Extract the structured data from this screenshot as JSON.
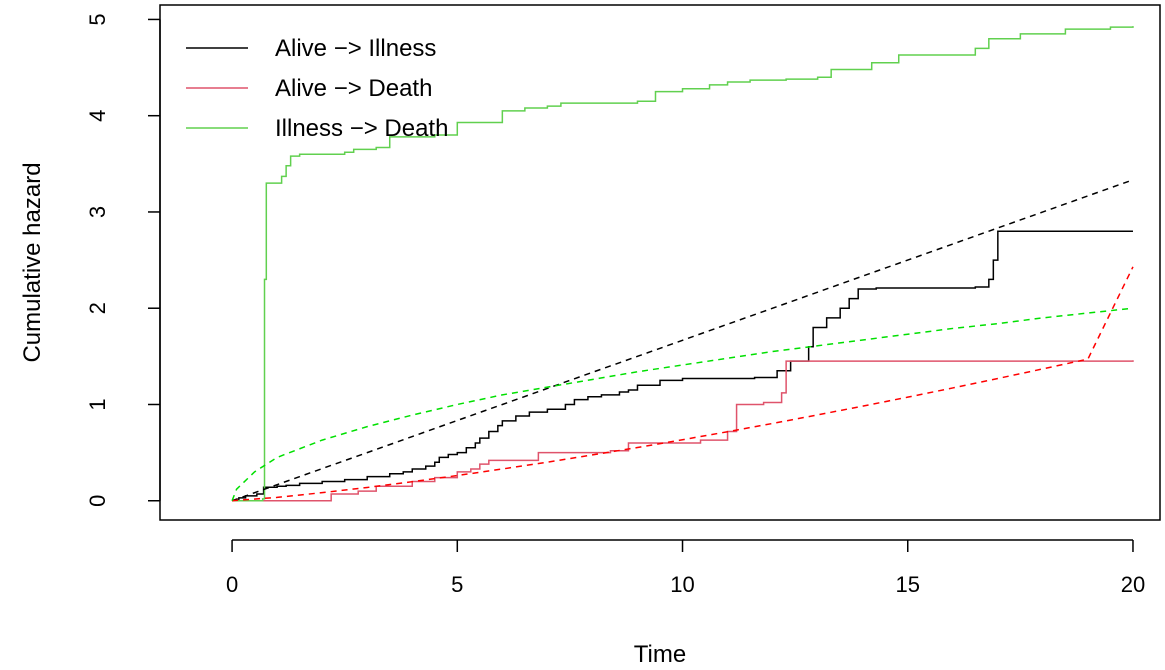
{
  "chart_data": {
    "type": "line",
    "xlabel": "Time",
    "ylabel": "Cumulative hazard",
    "xlim": [
      -1.6,
      20.6
    ],
    "ylim": [
      -0.2,
      5.15
    ],
    "x_ticks": [
      "0",
      "5",
      "10",
      "15",
      "20"
    ],
    "y_ticks": [
      "0",
      "1",
      "2",
      "3",
      "4",
      "5"
    ],
    "grid": false,
    "legend_position": "top-left",
    "series": [
      {
        "name": "Alive −> Illness",
        "color": "#000000",
        "style": "step",
        "points": [
          [
            0,
            0
          ],
          [
            0.15,
            0.03
          ],
          [
            0.3,
            0.05
          ],
          [
            0.55,
            0.07
          ],
          [
            0.7,
            0.1
          ],
          [
            0.7,
            0.14
          ],
          [
            1.0,
            0.15
          ],
          [
            1.2,
            0.16
          ],
          [
            1.5,
            0.18
          ],
          [
            2.0,
            0.2
          ],
          [
            2.5,
            0.22
          ],
          [
            3.0,
            0.25
          ],
          [
            3.5,
            0.28
          ],
          [
            3.8,
            0.3
          ],
          [
            4.0,
            0.33
          ],
          [
            4.3,
            0.36
          ],
          [
            4.5,
            0.4
          ],
          [
            4.6,
            0.45
          ],
          [
            4.8,
            0.48
          ],
          [
            5.0,
            0.5
          ],
          [
            5.2,
            0.55
          ],
          [
            5.4,
            0.6
          ],
          [
            5.5,
            0.65
          ],
          [
            5.7,
            0.72
          ],
          [
            5.9,
            0.78
          ],
          [
            6.0,
            0.83
          ],
          [
            6.3,
            0.88
          ],
          [
            6.6,
            0.92
          ],
          [
            7.0,
            0.95
          ],
          [
            7.4,
            1.0
          ],
          [
            7.6,
            1.05
          ],
          [
            7.9,
            1.08
          ],
          [
            8.2,
            1.1
          ],
          [
            8.6,
            1.13
          ],
          [
            8.8,
            1.15
          ],
          [
            9.0,
            1.2
          ],
          [
            9.5,
            1.25
          ],
          [
            10.0,
            1.27
          ],
          [
            11.6,
            1.28
          ],
          [
            12.1,
            1.35
          ],
          [
            12.4,
            1.45
          ],
          [
            12.8,
            1.6
          ],
          [
            12.9,
            1.8
          ],
          [
            13.2,
            1.9
          ],
          [
            13.5,
            2.0
          ],
          [
            13.7,
            2.1
          ],
          [
            13.9,
            2.2
          ],
          [
            14.3,
            2.21
          ],
          [
            16.5,
            2.22
          ],
          [
            16.8,
            2.3
          ],
          [
            16.9,
            2.5
          ],
          [
            17.0,
            2.8
          ],
          [
            20.0,
            2.8
          ]
        ]
      },
      {
        "name": "Alive −> Death",
        "color": "#df536b",
        "style": "step",
        "points": [
          [
            0,
            0
          ],
          [
            2.0,
            0
          ],
          [
            2.2,
            0.07
          ],
          [
            2.8,
            0.1
          ],
          [
            3.2,
            0.15
          ],
          [
            4.0,
            0.2
          ],
          [
            4.5,
            0.24
          ],
          [
            5.0,
            0.3
          ],
          [
            5.3,
            0.33
          ],
          [
            5.5,
            0.38
          ],
          [
            5.7,
            0.42
          ],
          [
            6.8,
            0.5
          ],
          [
            8.4,
            0.52
          ],
          [
            8.8,
            0.6
          ],
          [
            10.4,
            0.63
          ],
          [
            11.0,
            0.72
          ],
          [
            11.2,
            1.0
          ],
          [
            11.8,
            1.02
          ],
          [
            12.2,
            1.12
          ],
          [
            12.3,
            1.45
          ],
          [
            20.0,
            1.46
          ]
        ]
      },
      {
        "name": "Illness −> Death",
        "color": "#61d04f",
        "style": "step",
        "points": [
          [
            0,
            0
          ],
          [
            0.68,
            0.02
          ],
          [
            0.72,
            2.3
          ],
          [
            0.76,
            3.3
          ],
          [
            1.1,
            3.37
          ],
          [
            1.2,
            3.48
          ],
          [
            1.3,
            3.58
          ],
          [
            1.5,
            3.6
          ],
          [
            2.5,
            3.62
          ],
          [
            2.7,
            3.65
          ],
          [
            3.2,
            3.67
          ],
          [
            3.5,
            3.78
          ],
          [
            4.5,
            3.8
          ],
          [
            5.0,
            3.93
          ],
          [
            6.0,
            4.05
          ],
          [
            6.5,
            4.08
          ],
          [
            7.0,
            4.1
          ],
          [
            7.3,
            4.13
          ],
          [
            9.0,
            4.15
          ],
          [
            9.4,
            4.25
          ],
          [
            10.0,
            4.28
          ],
          [
            10.6,
            4.32
          ],
          [
            11.0,
            4.35
          ],
          [
            11.5,
            4.37
          ],
          [
            12.3,
            4.38
          ],
          [
            13.0,
            4.4
          ],
          [
            13.3,
            4.48
          ],
          [
            14.2,
            4.55
          ],
          [
            14.8,
            4.63
          ],
          [
            16.5,
            4.7
          ],
          [
            16.8,
            4.8
          ],
          [
            17.5,
            4.85
          ],
          [
            18.5,
            4.9
          ],
          [
            19.5,
            4.92
          ],
          [
            20.0,
            4.93
          ]
        ]
      },
      {
        "color": "#000000",
        "style": "dashed",
        "points": [
          [
            0,
            0
          ],
          [
            1,
            0.167
          ],
          [
            2,
            0.334
          ],
          [
            3,
            0.5
          ],
          [
            4,
            0.667
          ],
          [
            5,
            0.834
          ],
          [
            6,
            1.0
          ],
          [
            7,
            1.167
          ],
          [
            8,
            1.334
          ],
          [
            9,
            1.5
          ],
          [
            10,
            1.667
          ],
          [
            11,
            1.834
          ],
          [
            12,
            2.0
          ],
          [
            13,
            2.167
          ],
          [
            14,
            2.334
          ],
          [
            15,
            2.5
          ],
          [
            16,
            2.667
          ],
          [
            17,
            2.834
          ],
          [
            18,
            3.0
          ],
          [
            19,
            3.167
          ],
          [
            20,
            3.334
          ]
        ]
      },
      {
        "color": "#ff0000",
        "style": "dashed",
        "points": [
          [
            0,
            0
          ],
          [
            1,
            0.035
          ],
          [
            2,
            0.084
          ],
          [
            3,
            0.138
          ],
          [
            4,
            0.198
          ],
          [
            5,
            0.262
          ],
          [
            6,
            0.33
          ],
          [
            7,
            0.401
          ],
          [
            8,
            0.476
          ],
          [
            9,
            0.553
          ],
          [
            10,
            0.634
          ],
          [
            11,
            0.717
          ],
          [
            12,
            0.803
          ],
          [
            13,
            0.892
          ],
          [
            14,
            0.983
          ],
          [
            15,
            1.076
          ],
          [
            16,
            1.172
          ],
          [
            17,
            1.27
          ],
          [
            18,
            1.37
          ],
          [
            19,
            1.472
          ],
          [
            20,
            2.43
          ]
        ]
      },
      {
        "color": "#00e000",
        "style": "dashed",
        "points": [
          [
            0,
            0
          ],
          [
            0.1,
            0.12
          ],
          [
            0.5,
            0.3
          ],
          [
            1,
            0.45
          ],
          [
            2,
            0.63
          ],
          [
            3,
            0.77
          ],
          [
            4,
            0.89
          ],
          [
            5,
            1.0
          ],
          [
            6,
            1.1
          ],
          [
            7,
            1.18
          ],
          [
            8,
            1.26
          ],
          [
            9,
            1.34
          ],
          [
            10,
            1.41
          ],
          [
            11,
            1.48
          ],
          [
            12,
            1.55
          ],
          [
            13,
            1.61
          ],
          [
            14,
            1.67
          ],
          [
            15,
            1.73
          ],
          [
            16,
            1.79
          ],
          [
            17,
            1.84
          ],
          [
            18,
            1.9
          ],
          [
            19,
            1.95
          ],
          [
            20,
            2.0
          ]
        ]
      }
    ]
  }
}
